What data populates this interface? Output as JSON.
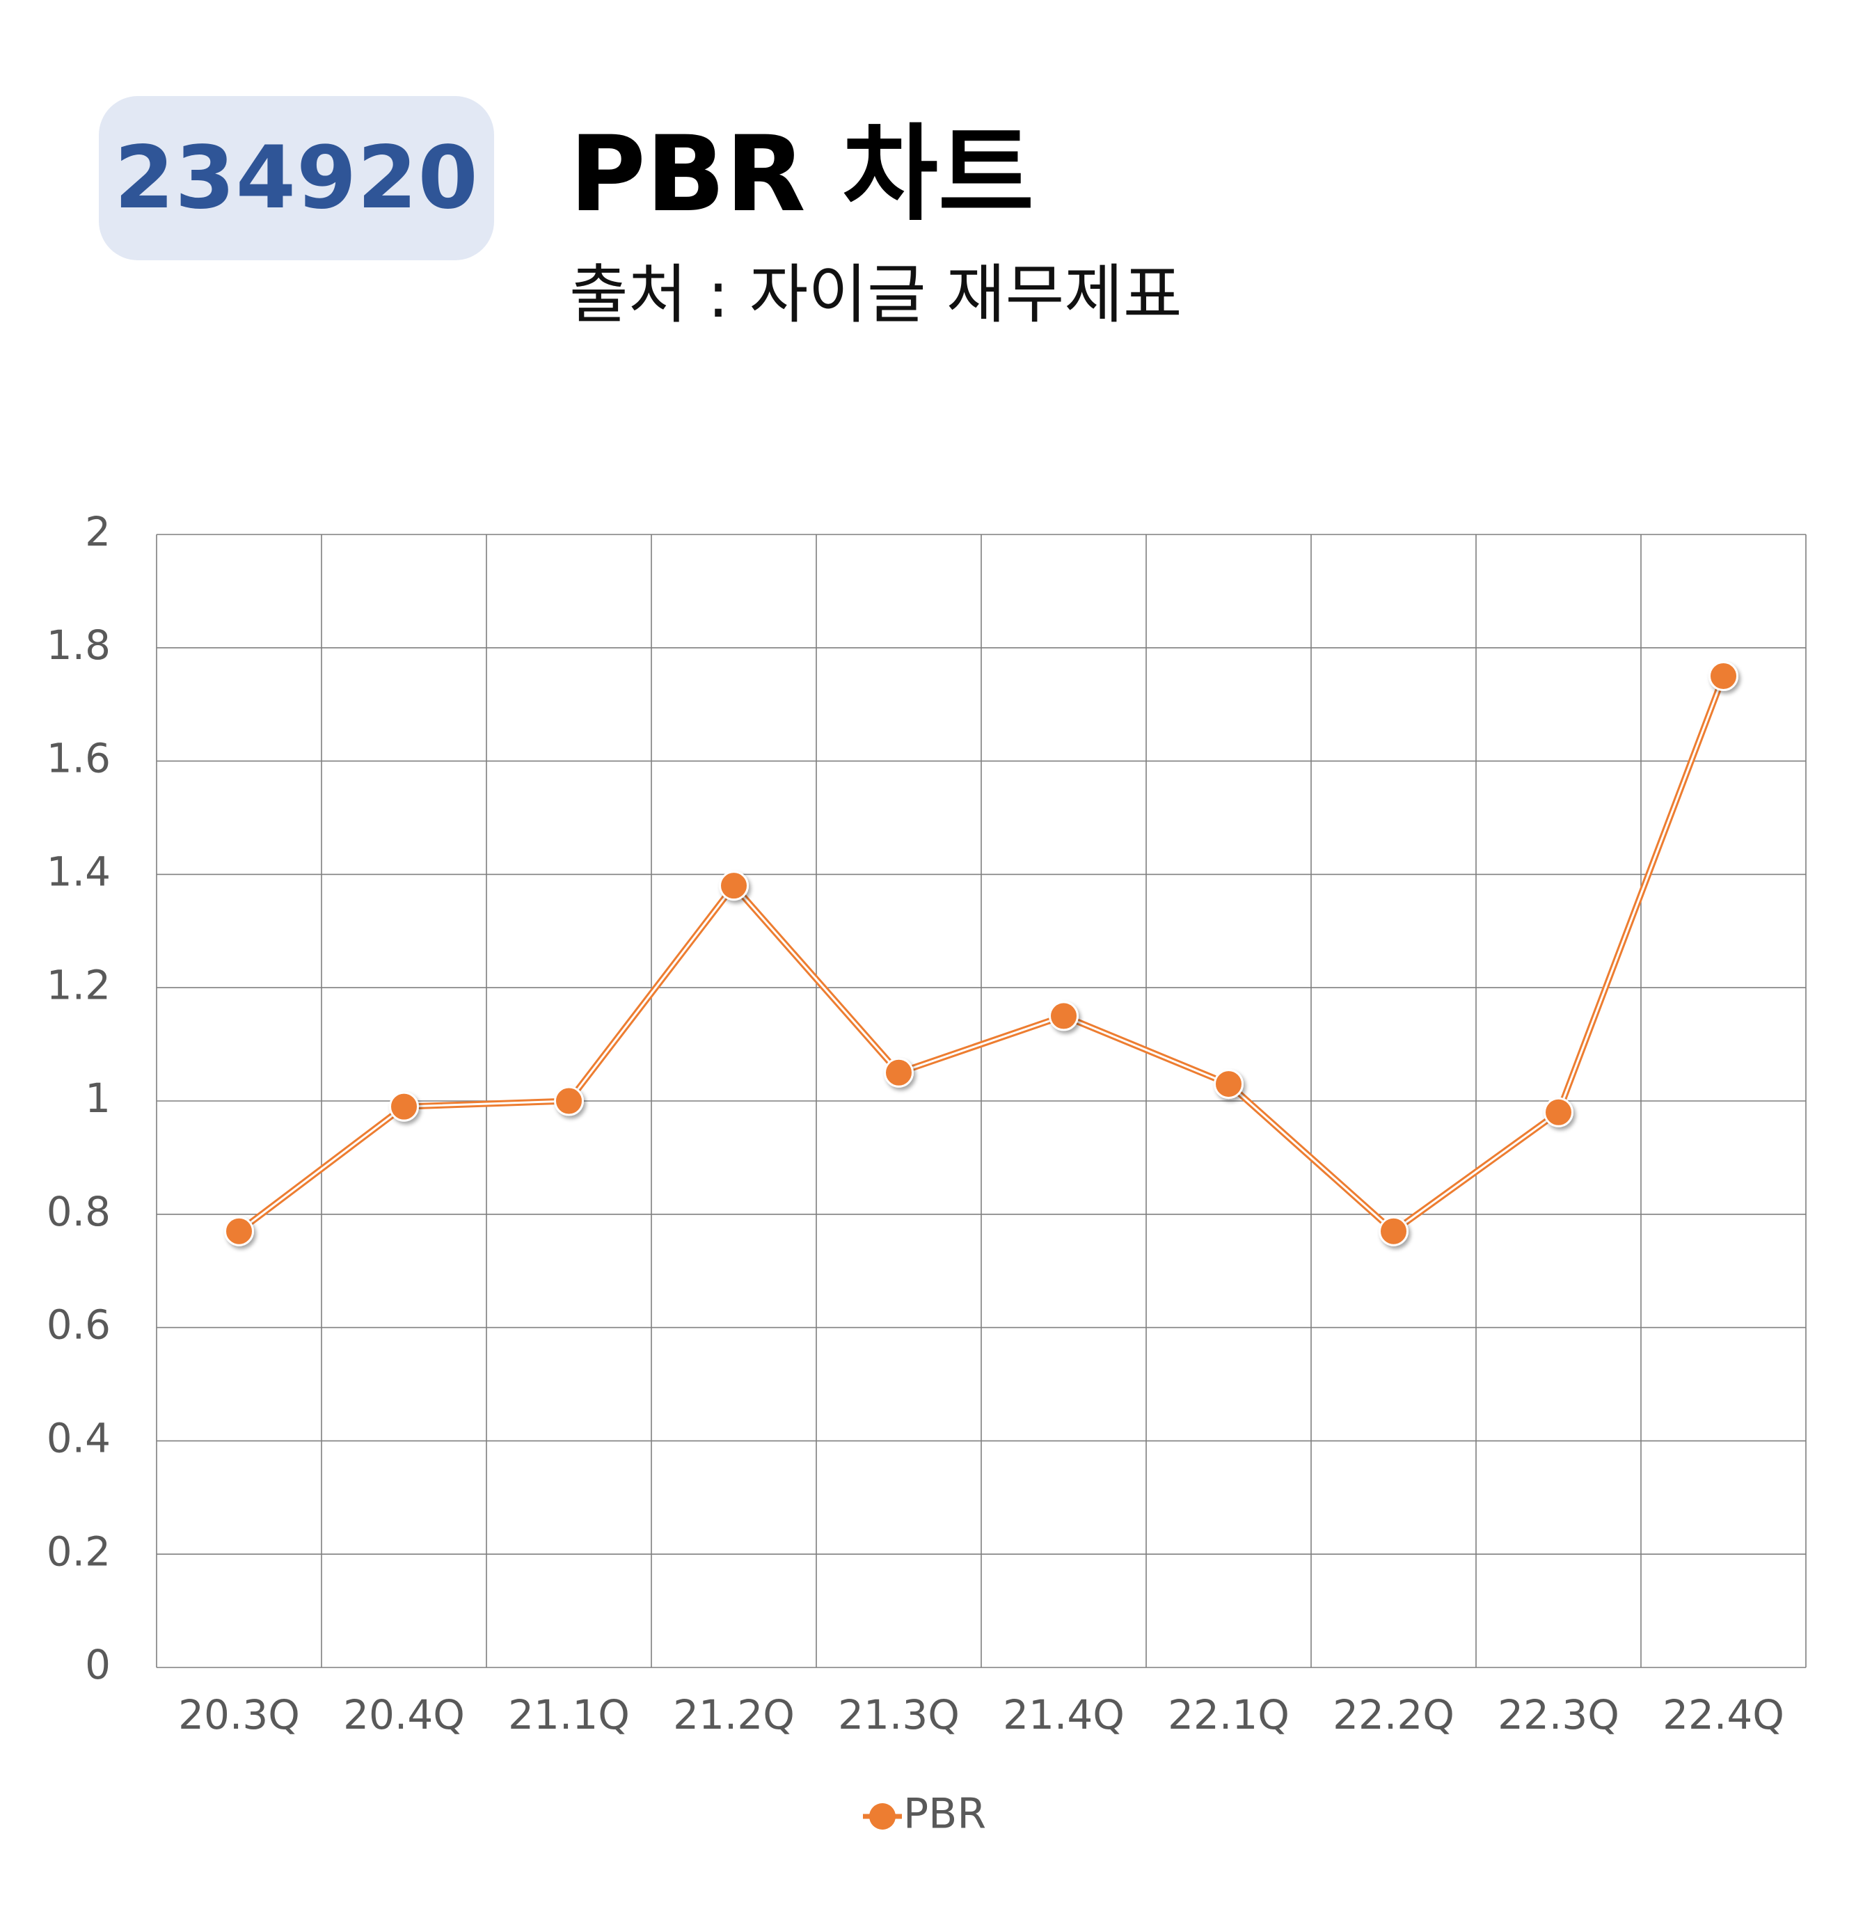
{
  "header": {
    "code": "234920",
    "title": "PBR 차트",
    "source": "출처 : 자이글 재무제표"
  },
  "colors": {
    "badge_background": "#e2e8f4",
    "badge_text": "#2f5597",
    "series": "#ed7d31",
    "grid": "#7f7f7f",
    "tick_text": "#595959"
  },
  "chart_data": {
    "type": "line",
    "categories": [
      "20.3Q",
      "20.4Q",
      "21.1Q",
      "21.2Q",
      "21.3Q",
      "21.4Q",
      "22.1Q",
      "22.2Q",
      "22.3Q",
      "22.4Q"
    ],
    "series": [
      {
        "name": "PBR",
        "values": [
          0.77,
          0.99,
          1.0,
          1.38,
          1.05,
          1.15,
          1.03,
          0.77,
          0.98,
          1.75
        ]
      }
    ],
    "ylim": [
      0,
      2
    ],
    "yticks": [
      "0",
      "0.2",
      "0.4",
      "0.6",
      "0.8",
      "1",
      "1.2",
      "1.4",
      "1.6",
      "1.8",
      "2"
    ],
    "grid": true,
    "legend": "bottom"
  }
}
